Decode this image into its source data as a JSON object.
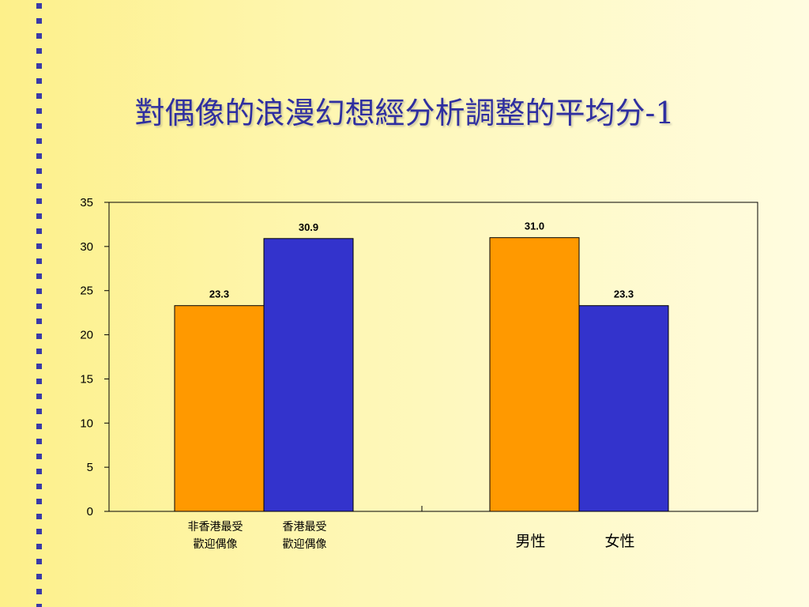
{
  "slide": {
    "title": "對偶像的浪漫幻想經分析調整的平均分-1"
  },
  "colors": {
    "orange": "#ff9900",
    "blue": "#3333cc",
    "title": "#2f2fa0",
    "bullet_squares": "#3a3aa8"
  },
  "chart_data": {
    "type": "bar",
    "ylim": [
      0,
      35
    ],
    "yticks": [
      "0",
      "5",
      "10",
      "15",
      "20",
      "25",
      "30",
      "35"
    ],
    "grid": false,
    "groups": [
      {
        "categories": [
          {
            "label_lines": [
              "非香港最受",
              "歡迎偶像"
            ]
          },
          {
            "label_lines": [
              "香港最受",
              "歡迎偶像"
            ]
          }
        ],
        "values": [
          23.3,
          30.9
        ],
        "value_labels": [
          "23.3",
          "30.9"
        ],
        "colors": [
          "orange",
          "blue"
        ]
      },
      {
        "legend_labels": [
          "男性",
          "女性"
        ],
        "values": [
          31.0,
          23.3
        ],
        "value_labels": [
          "31.0",
          "23.3"
        ],
        "colors": [
          "orange",
          "blue"
        ]
      }
    ]
  }
}
